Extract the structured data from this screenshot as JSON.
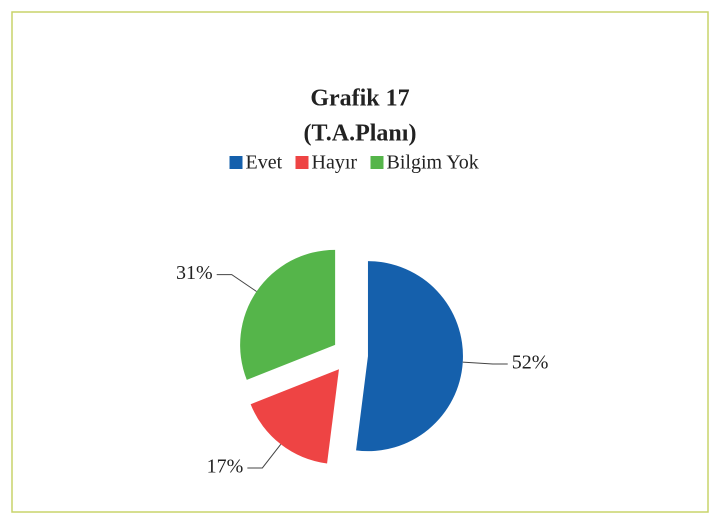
{
  "chart_data": {
    "type": "pie",
    "title": "Grafik 17",
    "subtitle": "(T.A.Planı)",
    "categories": [
      "Evet",
      "Hayır",
      "Bilgim Yok"
    ],
    "values": [
      52,
      17,
      31
    ],
    "value_labels": [
      "52%",
      "17%",
      "31%"
    ],
    "colors": [
      "#1560ac",
      "#ee4444",
      "#55b54a"
    ],
    "legend": "top"
  }
}
